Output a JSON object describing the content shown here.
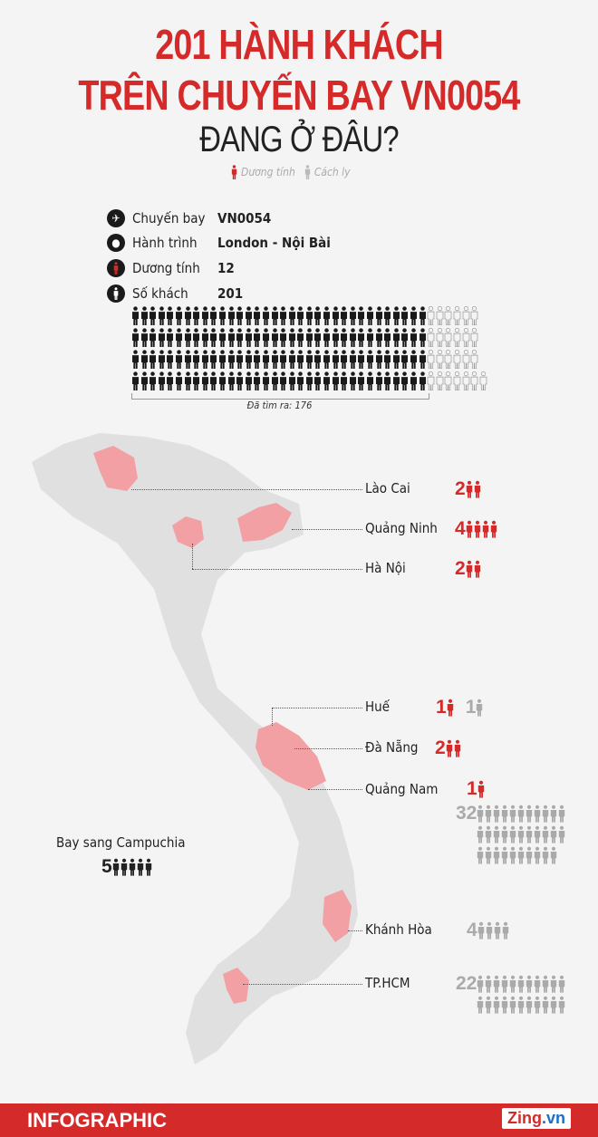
{
  "title": {
    "line1": "201 HÀNH KHÁCH",
    "line2": "TRÊN CHUYẾN BAY VN0054",
    "line3": "ĐANG Ở ĐÂU?"
  },
  "legend": {
    "positive": "Dương tính",
    "quarantine": "Cách ly"
  },
  "info": [
    {
      "icon": "plane-icon",
      "label": "Chuyến bay",
      "value": "VN0054"
    },
    {
      "icon": "location-pin-icon",
      "label": "Hành trình",
      "value": "London - Nội Bài"
    },
    {
      "icon": "person-red-icon",
      "label": "Dương tính",
      "value": "12"
    },
    {
      "icon": "person-icon",
      "label": "Số khách",
      "value": "201"
    }
  ],
  "passengers": {
    "total": 201,
    "found": 176,
    "found_label": "Đã tìm ra: 176"
  },
  "locations": [
    {
      "name": "Lào Cai",
      "positive": "2"
    },
    {
      "name": "Quảng Ninh",
      "positive": "4"
    },
    {
      "name": "Hà Nội",
      "positive": "2"
    },
    {
      "name": "Huế",
      "positive": "1",
      "quarantine": "1"
    },
    {
      "name": "Đà Nẵng",
      "positive": "2"
    },
    {
      "name": "Quảng Nam",
      "positive": "1",
      "quarantine": "32"
    },
    {
      "name": "Khánh Hòa",
      "quarantine": "4"
    },
    {
      "name": "TP.HCM",
      "quarantine": "22"
    }
  ],
  "cambodia": {
    "label": "Bay sang Campuchia",
    "count": "5"
  },
  "footer": {
    "label": "INFOGRAPHIC",
    "logo": "Zing.vn"
  },
  "colors": {
    "positive": "#d42a2a",
    "quarantine": "#aaaaaa",
    "found": "#1a1a1a",
    "map_land": "#e0e0e0",
    "map_highlight": "#f2a0a4"
  }
}
